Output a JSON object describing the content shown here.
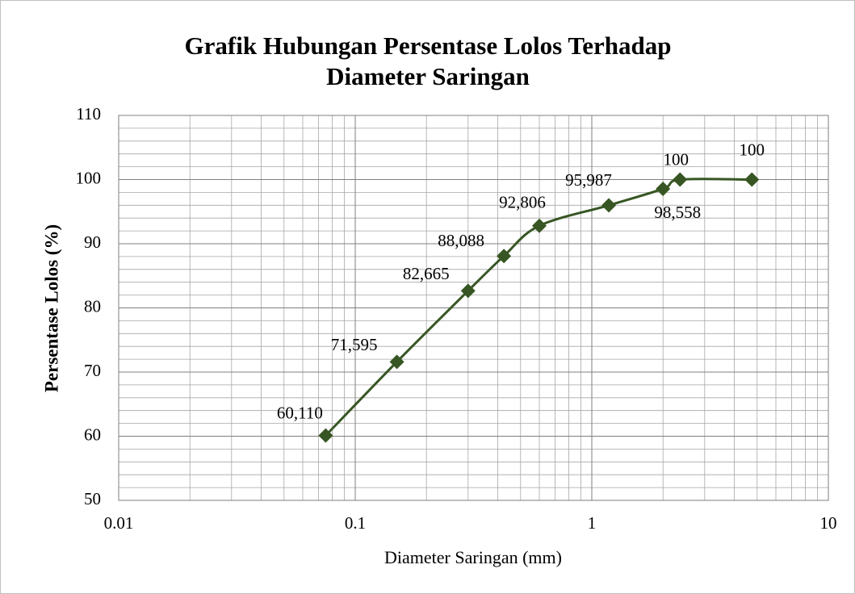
{
  "chart_data": {
    "type": "line",
    "title": [
      "Grafik Hubungan Persentase Lolos Terhadap",
      "Diameter Saringan"
    ],
    "x_label": "Diameter Saringan (mm)",
    "y_label": "Persentase Lolos (%)",
    "x": [
      0.075,
      0.15,
      0.3,
      0.425,
      0.6,
      1.18,
      2,
      2.36,
      4.75
    ],
    "series": [
      {
        "name": "Persentase Lolos",
        "color": "#375623",
        "values": [
          60.11,
          71.595,
          82.665,
          88.088,
          92.806,
          95.987,
          98.558,
          100,
          100
        ],
        "value_labels": [
          "60,110",
          "71,595",
          "82,665",
          "88,088",
          "92,806",
          "95,987",
          "98,558",
          "100",
          "100"
        ]
      }
    ],
    "xlim": [
      0.01,
      10
    ],
    "xticks": [
      0.01,
      0.1,
      1,
      10
    ],
    "x_log": true,
    "ylim": [
      50,
      110
    ],
    "yticks": [
      50,
      60,
      70,
      80,
      90,
      100,
      110
    ],
    "grid": true
  }
}
